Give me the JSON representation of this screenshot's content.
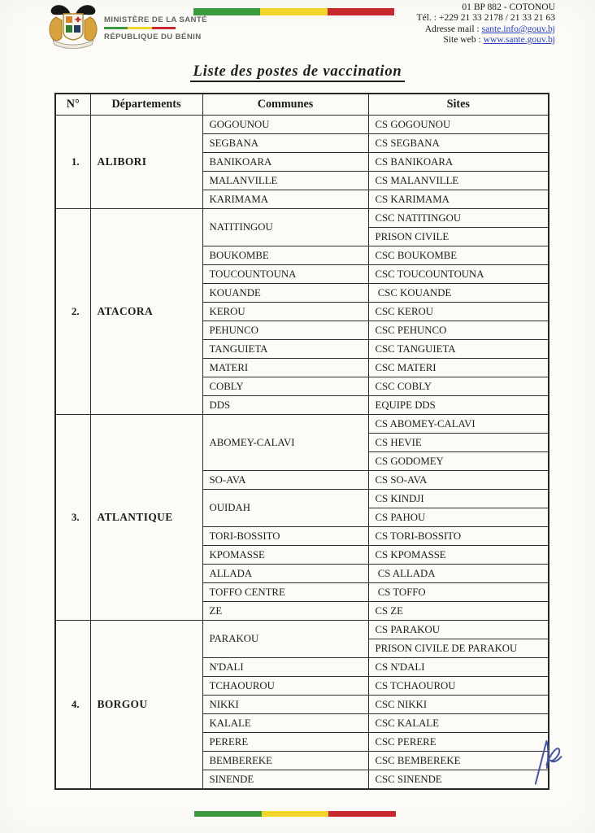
{
  "header": {
    "ministry_line1": "MINISTÈRE DE LA SANTÉ",
    "ministry_line2": "RÉPUBLIQUE DU BÉNIN",
    "address": "01 BP 882 - COTONOU",
    "phone": "Tél. : +229 21 33 2178 / 21 33 21 63",
    "email_label": "Adresse mail : ",
    "email": "sante.info@gouv.bj",
    "website_label": "Site web : ",
    "website": "www.sante.gouv.bj",
    "flag_colors": {
      "green": "#3c9b3f",
      "yellow": "#f2d52a",
      "red": "#c8292e"
    }
  },
  "title": "Liste des postes de vaccination",
  "table": {
    "headers": [
      "N°",
      "Départements",
      "Communes",
      "Sites"
    ],
    "sections": [
      {
        "num": "1.",
        "department": "ALIBORI",
        "communes": [
          {
            "name": "GOGOUNOU",
            "sites": [
              "CS GOGOUNOU"
            ]
          },
          {
            "name": "SEGBANA",
            "sites": [
              "CS SEGBANA"
            ]
          },
          {
            "name": "BANIKOARA",
            "sites": [
              "CS BANIKOARA"
            ]
          },
          {
            "name": "MALANVILLE",
            "sites": [
              "CS MALANVILLE"
            ]
          },
          {
            "name": "KARIMAMA",
            "sites": [
              "CS KARIMAMA"
            ]
          }
        ]
      },
      {
        "num": "2.",
        "department": "ATACORA",
        "communes": [
          {
            "name": "NATITINGOU",
            "sites": [
              "CSC NATITINGOU",
              "PRISON CIVILE"
            ]
          },
          {
            "name": "BOUKOMBE",
            "sites": [
              "CSC BOUKOMBE"
            ]
          },
          {
            "name": "TOUCOUNTOUNA",
            "sites": [
              "CSC TOUCOUNTOUNA"
            ]
          },
          {
            "name": "KOUANDE",
            "sites": [
              " CSC KOUANDE"
            ]
          },
          {
            "name": "KEROU",
            "sites": [
              "CSC KEROU"
            ]
          },
          {
            "name": "PEHUNCO",
            "sites": [
              "CSC PEHUNCO"
            ]
          },
          {
            "name": "TANGUIETA",
            "sites": [
              "CSC TANGUIETA"
            ]
          },
          {
            "name": "MATERI",
            "sites": [
              "CSC MATERI"
            ]
          },
          {
            "name": "COBLY",
            "sites": [
              "CSC COBLY"
            ]
          },
          {
            "name": "DDS",
            "sites": [
              "EQUIPE DDS"
            ]
          }
        ]
      },
      {
        "num": "3.",
        "department": "ATLANTIQUE",
        "communes": [
          {
            "name": "ABOMEY-CALAVI",
            "sites": [
              "CS ABOMEY-CALAVI",
              "CS HEVIE",
              "CS GODOMEY"
            ]
          },
          {
            "name": "SO-AVA",
            "sites": [
              "CS SO-AVA"
            ]
          },
          {
            "name": "OUIDAH",
            "sites": [
              "CS KINDJI",
              "CS PAHOU"
            ]
          },
          {
            "name": "TORI-BOSSITO",
            "sites": [
              "CS TORI-BOSSITO"
            ]
          },
          {
            "name": "KPOMASSE",
            "sites": [
              "CS KPOMASSE"
            ]
          },
          {
            "name": "ALLADA",
            "sites": [
              " CS ALLADA"
            ]
          },
          {
            "name": "TOFFO CENTRE",
            "sites": [
              " CS TOFFO"
            ]
          },
          {
            "name": "ZE",
            "sites": [
              "CS ZE"
            ]
          }
        ]
      },
      {
        "num": "4.",
        "department": "BORGOU",
        "communes": [
          {
            "name": "PARAKOU",
            "sites": [
              "CS PARAKOU",
              "PRISON CIVILE DE PARAKOU"
            ]
          },
          {
            "name": "N'DALI",
            "sites": [
              "CS N'DALI"
            ]
          },
          {
            "name": "TCHAOUROU",
            "sites": [
              "CS TCHAOUROU"
            ]
          },
          {
            "name": "NIKKI",
            "sites": [
              "CSC NIKKI"
            ]
          },
          {
            "name": "KALALE",
            "sites": [
              "CSC KALALE"
            ]
          },
          {
            "name": "PERERE",
            "sites": [
              "CSC PERERE"
            ]
          },
          {
            "name": "BEMBEREKE",
            "sites": [
              "CSC BEMBEREKE"
            ]
          },
          {
            "name": "SINENDE",
            "sites": [
              "CSC SINENDE"
            ]
          }
        ]
      }
    ]
  }
}
